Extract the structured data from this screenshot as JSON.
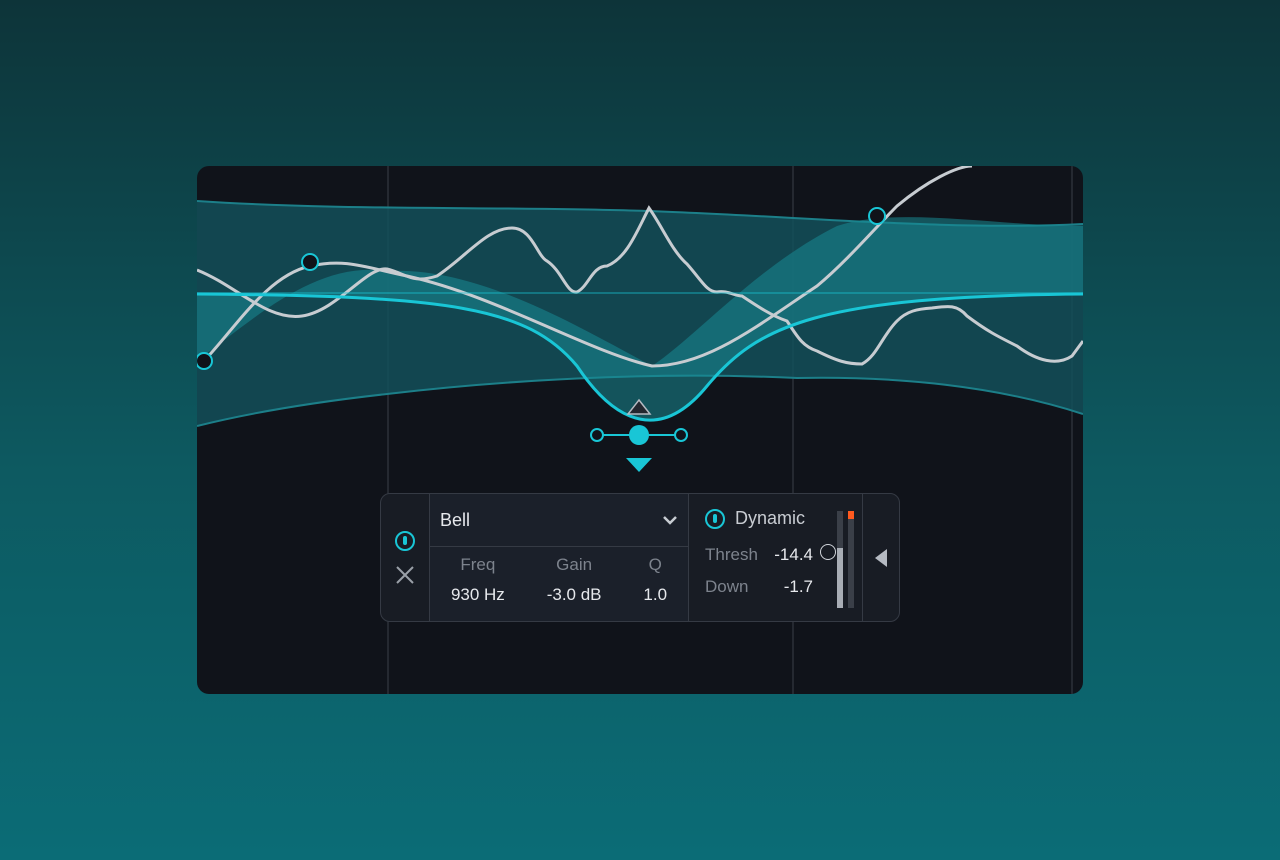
{
  "band": {
    "type": "Bell",
    "freq_label": "Freq",
    "freq": "930 Hz",
    "gain_label": "Gain",
    "gain": "-3.0 dB",
    "q_label": "Q",
    "q": "1.0"
  },
  "dynamic": {
    "label": "Dynamic",
    "thresh_label": "Thresh",
    "thresh": "-14.4",
    "down_label": "Down",
    "down": "-1.7",
    "meter_level": 0.62,
    "threshold_level": 0.55
  },
  "colors": {
    "accent": "#19c6d6",
    "meter_peak": "#ff5a1f"
  },
  "icons": [
    "power-icon",
    "close-icon",
    "chevron-down-icon",
    "collapse-arrow-icon",
    "raise-gain-arrow-icon",
    "lower-gain-arrow-icon"
  ]
}
